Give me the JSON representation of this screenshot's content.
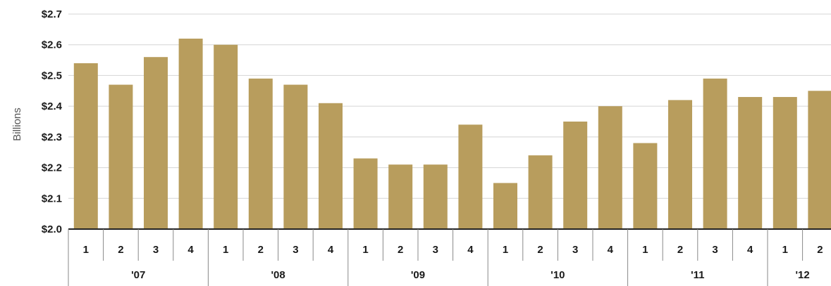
{
  "chart_data": {
    "type": "bar",
    "ylabel": "Billions",
    "ylim": [
      2.0,
      2.7
    ],
    "y_ticks": [
      "$2.0",
      "$2.1",
      "$2.2",
      "$2.3",
      "$2.4",
      "$2.5",
      "$2.6",
      "$2.7"
    ],
    "grid": true,
    "bar_color": "#b89d5d",
    "groups": [
      {
        "label": "'07",
        "quarters": [
          "1",
          "2",
          "3",
          "4"
        ]
      },
      {
        "label": "'08",
        "quarters": [
          "1",
          "2",
          "3",
          "4"
        ]
      },
      {
        "label": "'09",
        "quarters": [
          "1",
          "2",
          "3",
          "4"
        ]
      },
      {
        "label": "'10",
        "quarters": [
          "1",
          "2",
          "3",
          "4"
        ]
      },
      {
        "label": "'11",
        "quarters": [
          "1",
          "2",
          "3",
          "4"
        ]
      },
      {
        "label": "'12",
        "quarters": [
          "1",
          "2"
        ]
      }
    ],
    "values": [
      2.54,
      2.47,
      2.56,
      2.62,
      2.6,
      2.49,
      2.47,
      2.41,
      2.23,
      2.21,
      2.21,
      2.34,
      2.15,
      2.24,
      2.35,
      2.4,
      2.28,
      2.42,
      2.49,
      2.43,
      2.43,
      2.45
    ]
  }
}
